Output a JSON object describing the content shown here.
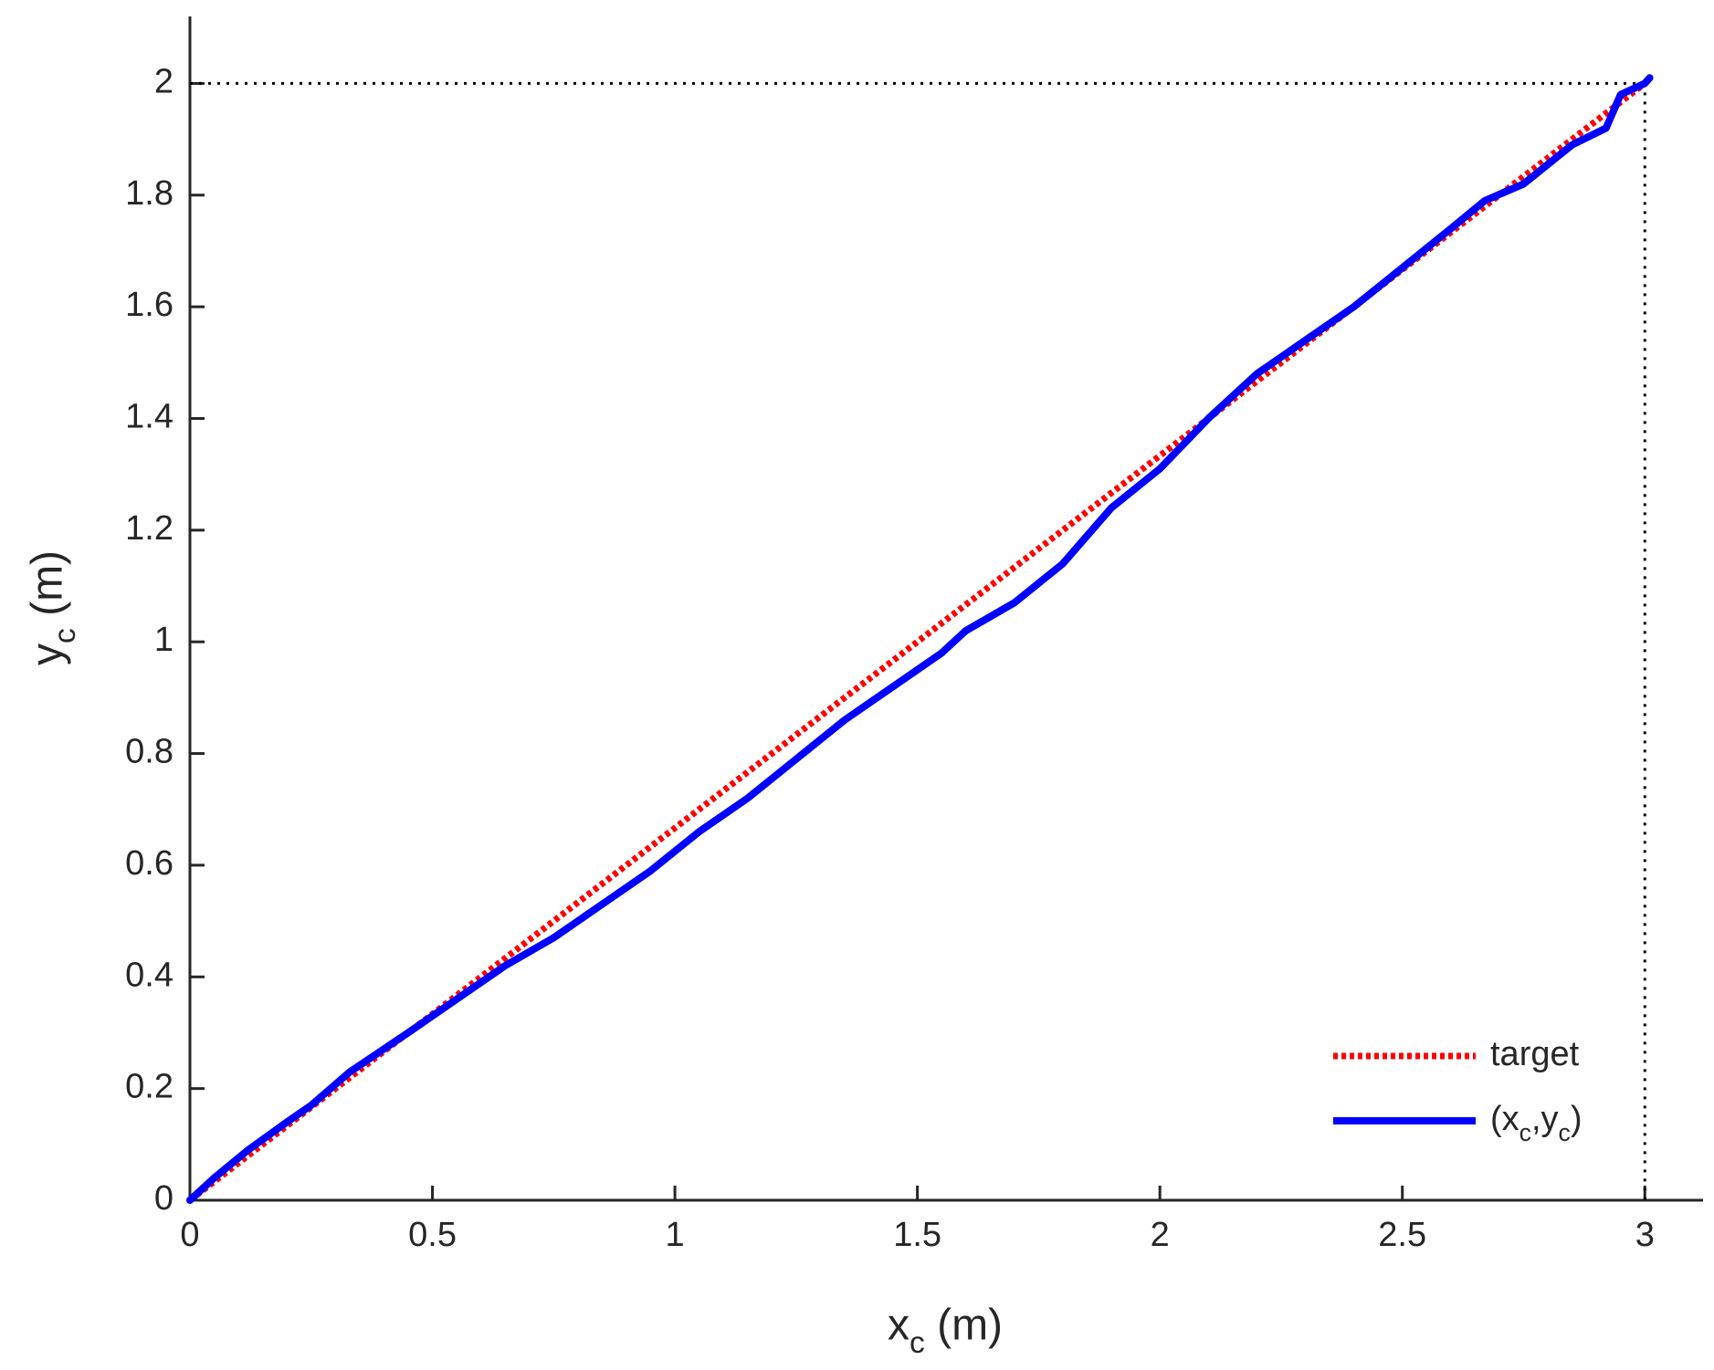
{
  "chart_data": {
    "type": "line",
    "xlabel": "x_c (m)",
    "ylabel": "y_c (m)",
    "xlim": [
      0,
      3.12
    ],
    "ylim": [
      0,
      2.12
    ],
    "xticks": [
      0,
      0.5,
      1,
      1.5,
      2,
      2.5,
      3
    ],
    "yticks": [
      0,
      0.2,
      0.4,
      0.6,
      0.8,
      1,
      1.2,
      1.4,
      1.6,
      1.8,
      2
    ],
    "legend": "lower right",
    "target_point": {
      "x": 3,
      "y": 2,
      "color": "#000000"
    },
    "series": [
      {
        "name": "target",
        "color": "#ff0000",
        "style": "dotted",
        "x": [
          0,
          3
        ],
        "values": [
          0,
          2
        ]
      },
      {
        "name": "(x_c,y_c)",
        "color": "#0000ff",
        "style": "solid",
        "x": [
          0,
          0.05,
          0.12,
          0.2,
          0.25,
          0.33,
          0.45,
          0.55,
          0.65,
          0.75,
          0.85,
          0.95,
          1.05,
          1.15,
          1.25,
          1.35,
          1.45,
          1.55,
          1.6,
          1.7,
          1.8,
          1.9,
          2.0,
          2.1,
          2.2,
          2.3,
          2.4,
          2.5,
          2.6,
          2.67,
          2.75,
          2.85,
          2.92,
          2.95,
          3.0,
          3.01
        ],
        "values": [
          0,
          0.04,
          0.09,
          0.14,
          0.17,
          0.23,
          0.3,
          0.36,
          0.42,
          0.47,
          0.53,
          0.59,
          0.66,
          0.72,
          0.79,
          0.86,
          0.92,
          0.98,
          1.02,
          1.07,
          1.14,
          1.24,
          1.31,
          1.4,
          1.48,
          1.54,
          1.6,
          1.67,
          1.74,
          1.79,
          1.82,
          1.89,
          1.92,
          1.98,
          2.0,
          2.01
        ]
      }
    ]
  }
}
